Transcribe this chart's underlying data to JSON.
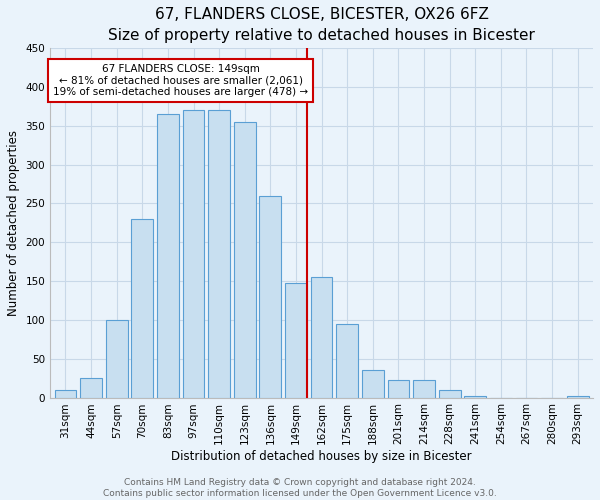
{
  "title": "67, FLANDERS CLOSE, BICESTER, OX26 6FZ",
  "subtitle": "Size of property relative to detached houses in Bicester",
  "xlabel": "Distribution of detached houses by size in Bicester",
  "ylabel": "Number of detached properties",
  "bar_labels": [
    "31sqm",
    "44sqm",
    "57sqm",
    "70sqm",
    "83sqm",
    "97sqm",
    "110sqm",
    "123sqm",
    "136sqm",
    "149sqm",
    "162sqm",
    "175sqm",
    "188sqm",
    "201sqm",
    "214sqm",
    "228sqm",
    "241sqm",
    "254sqm",
    "267sqm",
    "280sqm",
    "293sqm"
  ],
  "bar_values": [
    10,
    25,
    100,
    230,
    365,
    370,
    370,
    355,
    260,
    148,
    155,
    95,
    35,
    22,
    22,
    10,
    2,
    0,
    0,
    0,
    2
  ],
  "bar_color": "#c8dff0",
  "bar_edge_color": "#5a9fd4",
  "highlight_index": 9,
  "highlight_line_color": "#cc0000",
  "annotation_line1": "67 FLANDERS CLOSE: 149sqm",
  "annotation_line2": "← 81% of detached houses are smaller (2,061)",
  "annotation_line3": "19% of semi-detached houses are larger (478) →",
  "annotation_box_edge_color": "#cc0000",
  "annotation_box_face_color": "#ffffff",
  "ylim": [
    0,
    450
  ],
  "yticks": [
    0,
    50,
    100,
    150,
    200,
    250,
    300,
    350,
    400,
    450
  ],
  "footer_line1": "Contains HM Land Registry data © Crown copyright and database right 2024.",
  "footer_line2": "Contains public sector information licensed under the Open Government Licence v3.0.",
  "background_color": "#eaf3fb",
  "grid_color": "#c8d8e8",
  "title_fontsize": 11,
  "subtitle_fontsize": 9.5,
  "axis_label_fontsize": 8.5,
  "tick_fontsize": 7.5,
  "annot_fontsize": 7.5,
  "footer_fontsize": 6.5
}
